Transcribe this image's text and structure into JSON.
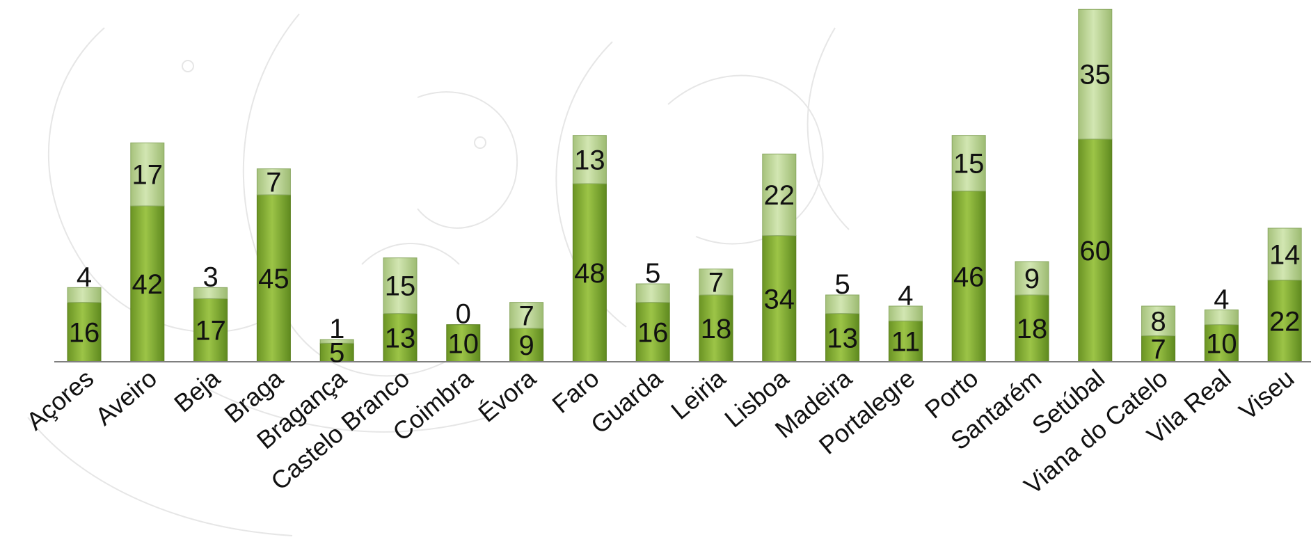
{
  "chart_data": {
    "type": "bar",
    "stacked": true,
    "title": "",
    "xlabel": "",
    "ylabel": "",
    "ylim": [
      0,
      96
    ],
    "grid": false,
    "legend": "none",
    "categories": [
      "Açores",
      "Aveiro",
      "Beja",
      "Braga",
      "Bragança",
      "Castelo Branco",
      "Coimbra",
      "Évora",
      "Faro",
      "Guarda",
      "Leiria",
      "Lisboa",
      "Madeira",
      "Portalegre",
      "Porto",
      "Santarém",
      "Setúbal",
      "Viana do Catelo",
      "Vila Real",
      "Viseu"
    ],
    "series": [
      {
        "values": [
          16,
          42,
          17,
          45,
          5,
          13,
          10,
          9,
          48,
          16,
          18,
          34,
          13,
          11,
          46,
          18,
          60,
          7,
          10,
          22
        ]
      },
      {
        "values": [
          4,
          17,
          3,
          7,
          1,
          15,
          0,
          7,
          13,
          5,
          7,
          22,
          5,
          4,
          15,
          9,
          35,
          8,
          4,
          14
        ]
      }
    ],
    "colors": {
      "series_bottom": "#7faa2e",
      "series_bottom_light": "#a6cc54",
      "series_top": "#b4cf8e",
      "series_top_light": "#d3e6b5",
      "axis": "#7f7f7f"
    }
  }
}
